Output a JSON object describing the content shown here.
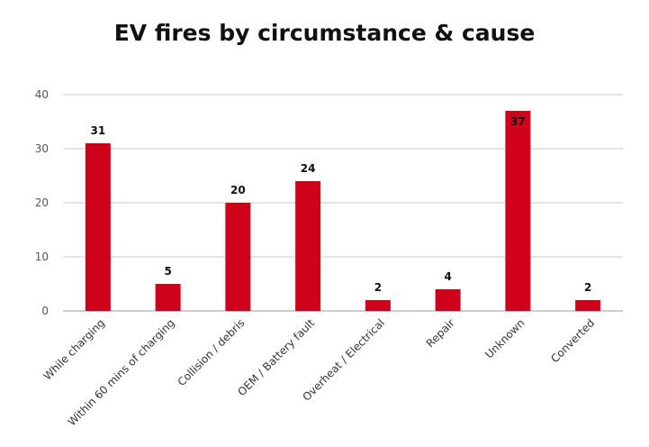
{
  "chart_data": {
    "type": "bar",
    "title": "EV fires by circumstance & cause",
    "categories": [
      "While charging",
      "Within 60 mins of charging",
      "Collision / debris",
      "OEM / Battery fault",
      "Overheat / Electrical",
      "Repair",
      "Unknown",
      "Converted"
    ],
    "values": [
      31,
      5,
      20,
      24,
      2,
      4,
      37,
      2
    ],
    "data_labels": [
      "31",
      "5",
      "20",
      "24",
      "2",
      "4",
      "37",
      "2"
    ],
    "y_ticks": [
      "0",
      "10",
      "20",
      "30",
      "40"
    ],
    "ylim": [
      0,
      40
    ],
    "xlabel": "",
    "ylabel": "",
    "grid": true,
    "legend": "none",
    "bar_color": "#d0021b",
    "text_color": "#111111",
    "grid_color": "#c8c8c8"
  }
}
